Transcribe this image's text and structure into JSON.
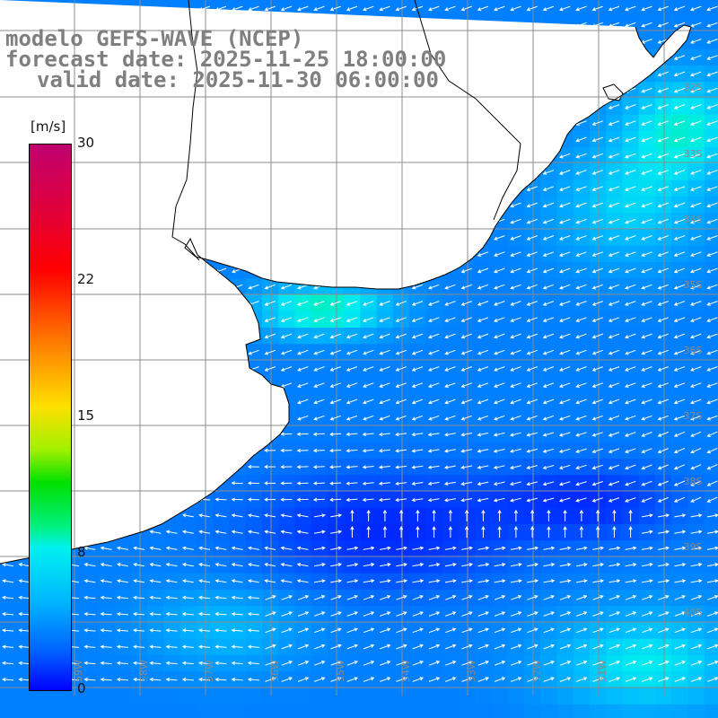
{
  "header": {
    "model_line": "modelo GEFS-WAVE (NCEP)",
    "forecast_line": "forecast date: 2025-11-25 18:00:00",
    "valid_line": "valid date: 2025-11-30 06:00:00"
  },
  "colorbar": {
    "unit": "[m/s]",
    "min": 0,
    "max": 30,
    "ticks": [
      "30",
      "22",
      "15",
      "8",
      "0"
    ],
    "tick_values": [
      30,
      22,
      15,
      8,
      0
    ],
    "colors": [
      "#0000ff",
      "#0060ff",
      "#00b4ff",
      "#00f0f0",
      "#00f080",
      "#00e000",
      "#a0f000",
      "#ffe000",
      "#ff7000",
      "#ff0000",
      "#e0003a",
      "#c00070"
    ]
  },
  "map": {
    "lat_labels": [
      "32S",
      "33S",
      "34S",
      "35S",
      "36S",
      "37S",
      "38S",
      "39S",
      "40S"
    ],
    "lon_labels": [
      "59W",
      "58W",
      "57W",
      "56W",
      "55W",
      "54W",
      "53W",
      "52W",
      "51W"
    ],
    "land_color": "#ffffff",
    "grid_color": "#8c8c8c",
    "arrow_color": "#ffffff",
    "coast_color": "#000000"
  }
}
